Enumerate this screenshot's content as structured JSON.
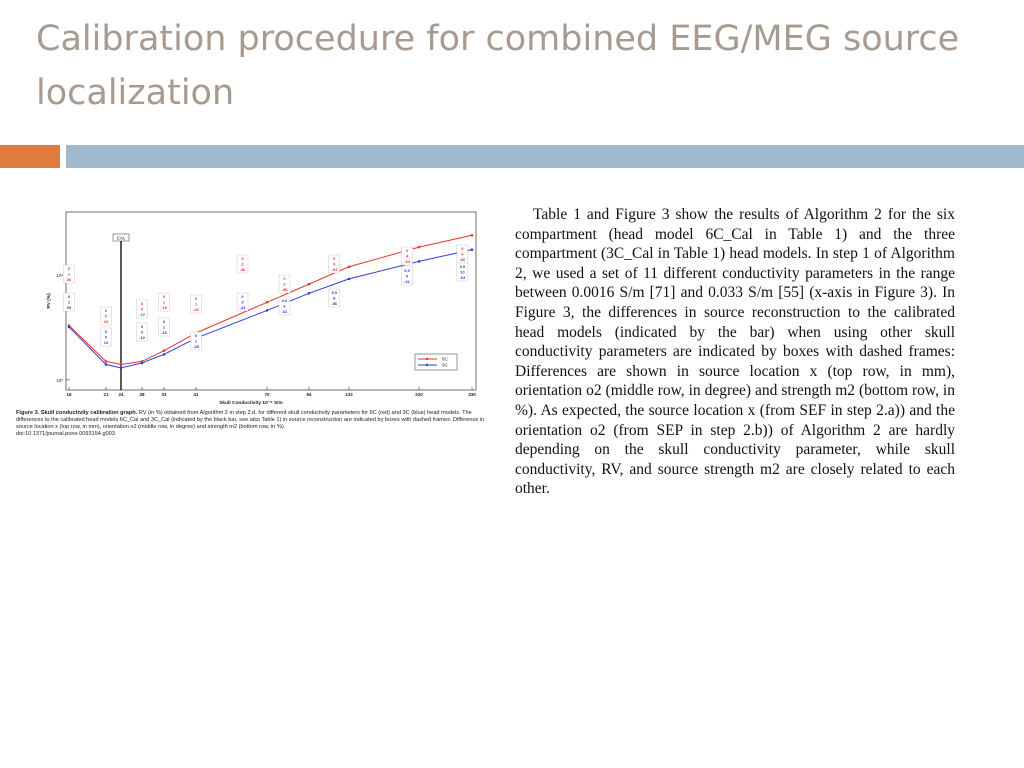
{
  "slide": {
    "title": "Calibration procedure for combined EEG/MEG source localization"
  },
  "figure": {
    "caption_label": "Figure 3. Skull conductivity calibration graph.",
    "caption_text": " RV (in %) obtained from Algorithm 2 in step 2.d. for different skull conductivity parameters for 6C (red) and 3C (blue) head models. The differences to the calibrated head models 6C_Cal and 3C_Cal (indicated by the black bar, see also Table 1) in source reconstruction are indicated by boxes with dashed frames: Difference in source location x (top row, in mm), orientation o2 (middle row, in degree) and strength m2 (bottom row, in %).",
    "doi": "doi:10.1371/journal.pone.0093154.g003"
  },
  "chart_data": {
    "type": "line",
    "xlabel": "Skull Conductivity 10⁻⁴ S/m",
    "ylabel": "RV (%)",
    "x": [
      16,
      21,
      24,
      28,
      33,
      41,
      70,
      94,
      132,
      220,
      330
    ],
    "x_tick_labels": [
      "16",
      "21",
      "24",
      "28",
      "33",
      "41",
      "70",
      "94",
      "132",
      "220",
      "330"
    ],
    "y_scale": "log",
    "y_ticks": [
      "10⁰",
      "10¹"
    ],
    "ylim": [
      0.8,
      40
    ],
    "cal_marker": {
      "label": "CAL",
      "x": 24
    },
    "series": [
      {
        "name": "6C",
        "color": "#e8342c",
        "values": [
          3.3,
          1.5,
          1.4,
          1.5,
          1.9,
          2.8,
          5.5,
          8.2,
          12,
          18.5,
          24
        ]
      },
      {
        "name": "3C",
        "color": "#2a3fd6",
        "values": [
          3.2,
          1.4,
          1.3,
          1.45,
          1.75,
          2.5,
          4.6,
          6.7,
          9.2,
          13.5,
          17.5
        ]
      }
    ],
    "annotations": [
      {
        "x": 16,
        "color": "#e8342c",
        "lines": [
          "0",
          "1",
          "26"
        ]
      },
      {
        "x": 16,
        "color": "#2a3fd6",
        "lines": [
          "0",
          "1",
          "99"
        ]
      },
      {
        "x": 21,
        "color": "#e8342c",
        "lines": [
          "0",
          "0",
          "10"
        ]
      },
      {
        "x": 21,
        "color": "#2a3fd6",
        "lines": [
          "0",
          "0",
          "10"
        ]
      },
      {
        "x": 28,
        "color": "#e8342c",
        "lines": [
          "0",
          "0",
          "-10"
        ]
      },
      {
        "x": 28,
        "color": "#2a3fd6",
        "lines": [
          "0",
          "0",
          "-10"
        ]
      },
      {
        "x": 33,
        "color": "#e8342c",
        "lines": [
          "0",
          "1",
          "-19"
        ]
      },
      {
        "x": 33,
        "color": "#2a3fd6",
        "lines": [
          "0",
          "1",
          "-16"
        ]
      },
      {
        "x": 41,
        "color": "#e8342c",
        "lines": [
          "0",
          "1",
          "-29"
        ]
      },
      {
        "x": 41,
        "color": "#2a3fd6",
        "lines": [
          "0",
          "1",
          "-28"
        ]
      },
      {
        "x": 60,
        "color": "#e8342c",
        "lines": [
          "0",
          "2",
          "-46"
        ]
      },
      {
        "x": 60,
        "color": "#2a3fd6",
        "lines": [
          "0",
          "3",
          "-44"
        ]
      },
      {
        "x": 80,
        "color": "#e8342c",
        "lines": [
          "0",
          "2",
          "-58"
        ]
      },
      {
        "x": 80,
        "color": "#2a3fd6",
        "lines": [
          "2.6",
          "6",
          "-62"
        ]
      },
      {
        "x": 118,
        "color": "#e8342c",
        "lines": [
          "0",
          "3",
          "-64"
        ]
      },
      {
        "x": 118,
        "color": "#2a3fd6",
        "lines": [
          "5.9",
          "8",
          "-56"
        ]
      },
      {
        "x": 205,
        "color": "#e8342c",
        "lines": [
          "0",
          "4",
          "-64"
        ]
      },
      {
        "x": 205,
        "color": "#2a3fd6",
        "lines": [
          "5.9",
          "9",
          "-61"
        ]
      },
      {
        "x": 310,
        "color": "#e8342c",
        "lines": [
          "0",
          "4",
          "-66"
        ]
      },
      {
        "x": 310,
        "color": "#2a3fd6",
        "lines": [
          "5.9",
          "10",
          "-63"
        ]
      }
    ],
    "legend_placement": "bottom-right",
    "grid": false
  },
  "body": {
    "paragraph": "Table 1 and Figure 3 show the results of Algorithm 2 for the six compartment (head model 6C_Cal in Table 1) and the three compartment (3C_Cal in Table 1) head models. In step 1 of Algorithm 2, we used a set of 11 different conductivity parameters in the range between 0.0016 S/m [71] and 0.033 S/m [55] (x-axis in Figure 3). In Figure 3, the differences in source reconstruction to the calibrated head models (indicated by the bar) when using other skull conductivity parameters are indicated by boxes with dashed frames: Differences are shown in source location x (top row, in mm), orientation o2 (middle row, in degree) and strength m2 (bottom row, in %). As expected, the source location x (from SEF in step 2.a)) and the orientation o2 (from SEP in step 2.b)) of Algorithm 2 are hardly depending on the skull conductivity parameter, while skull conductivity, RV, and source strength m2 are closely related to each other."
  }
}
